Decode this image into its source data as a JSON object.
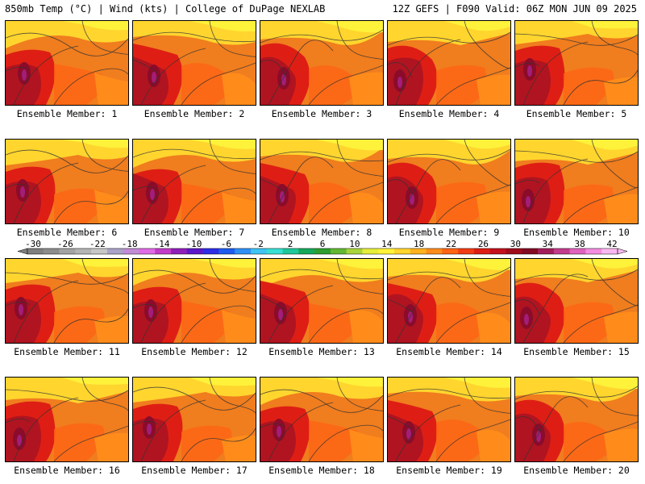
{
  "header": {
    "left": "850mb Temp (°C) | Wind (kts) | College of DuPage NEXLAB",
    "right": "12Z GEFS | F090 Valid: 06Z MON JUN 09 2025"
  },
  "panels": [
    {
      "label": "Ensemble Member: 1"
    },
    {
      "label": "Ensemble Member: 2"
    },
    {
      "label": "Ensemble Member: 3"
    },
    {
      "label": "Ensemble Member: 4"
    },
    {
      "label": "Ensemble Member: 5"
    },
    {
      "label": "Ensemble Member: 6"
    },
    {
      "label": "Ensemble Member: 7"
    },
    {
      "label": "Ensemble Member: 8"
    },
    {
      "label": "Ensemble Member: 9"
    },
    {
      "label": "Ensemble Member: 10"
    },
    {
      "label": "Ensemble Member: 11"
    },
    {
      "label": "Ensemble Member: 12"
    },
    {
      "label": "Ensemble Member: 13"
    },
    {
      "label": "Ensemble Member: 14"
    },
    {
      "label": "Ensemble Member: 15"
    },
    {
      "label": "Ensemble Member: 16"
    },
    {
      "label": "Ensemble Member: 17"
    },
    {
      "label": "Ensemble Member: 18"
    },
    {
      "label": "Ensemble Member: 19"
    },
    {
      "label": "Ensemble Member: 20"
    }
  ],
  "colorbar": {
    "labels": [
      "-30",
      "-26",
      "-22",
      "-18",
      "-14",
      "-10",
      "-6",
      "-2",
      "2",
      "6",
      "10",
      "14",
      "18",
      "22",
      "26",
      "30",
      "34",
      "38",
      "42"
    ],
    "colors": [
      "#7f7f7f",
      "#8c8c8c",
      "#a3a3a3",
      "#b4b4b4",
      "#c7c7c7",
      "#aaa2c8",
      "#c18bd6",
      "#e06be5",
      "#c23cc9",
      "#8f1fb9",
      "#5b18c7",
      "#2e2ee6",
      "#1e5cf0",
      "#2f8ff5",
      "#3fc3f2",
      "#37e0d2",
      "#1fc79a",
      "#17a85a",
      "#2e9e2e",
      "#63b832",
      "#a8d43a",
      "#e5ee3a",
      "#fff23a",
      "#ffd52e",
      "#ffb21f",
      "#ff8c1a",
      "#ff6414",
      "#f23c14",
      "#de1e14",
      "#c4101c",
      "#a00c1a",
      "#820a22",
      "#a21e5a",
      "#c23c8c",
      "#e062bc",
      "#f48ce0",
      "#fbb8f0"
    ]
  }
}
